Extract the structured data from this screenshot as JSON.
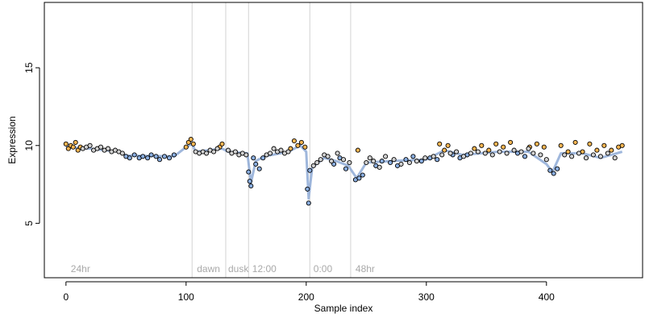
{
  "chart_data": {
    "type": "scatter",
    "title": "",
    "xlabel": "Sample index",
    "ylabel": "Expression",
    "xlim": [
      -18,
      480
    ],
    "ylim": [
      1.5,
      19.2
    ],
    "x_ticks": [
      0,
      100,
      200,
      300,
      400
    ],
    "y_ticks": [
      5,
      10,
      15
    ],
    "y_tick_labels": [
      "5",
      "10",
      "15"
    ],
    "x_tick_labels": [
      "0",
      "100",
      "200",
      "300",
      "400"
    ],
    "grid": false,
    "legend": "none",
    "colors": {
      "frame": "#000000",
      "divider": "#d3d3d3",
      "label_text": "#a9a9a9",
      "point_edge": "#000000",
      "fill_a": "#f7b652",
      "fill_b": "#8aaee0",
      "fill_neutral": "#d0d0d0",
      "trend_a": "#f0b068",
      "trend_b": "#8eaad6"
    },
    "segment_dividers": [
      105,
      133,
      152,
      203,
      237
    ],
    "segment_labels": [
      {
        "x": 2,
        "text": "24hr"
      },
      {
        "x": 107,
        "text": "dawn"
      },
      {
        "x": 133,
        "text": "dusk"
      },
      {
        "x": 153,
        "text": "12:00"
      },
      {
        "x": 204,
        "text": "0:00"
      },
      {
        "x": 239,
        "text": "48hr"
      }
    ],
    "series": [
      {
        "style": "orange-filled points",
        "points": [
          [
            0,
            10.1
          ],
          [
            2,
            9.8
          ],
          [
            4,
            10.0
          ],
          [
            6,
            9.9
          ],
          [
            8,
            10.2
          ],
          [
            10,
            9.7
          ],
          [
            12,
            9.9
          ],
          [
            100,
            9.9
          ],
          [
            102,
            10.2
          ],
          [
            104,
            10.4
          ],
          [
            106,
            10.1
          ],
          [
            128,
            9.9
          ],
          [
            130,
            10.1
          ],
          [
            187,
            9.8
          ],
          [
            190,
            10.3
          ],
          [
            193,
            10.0
          ],
          [
            196,
            10.2
          ],
          [
            199,
            9.9
          ],
          [
            243,
            9.7
          ],
          [
            311,
            10.1
          ],
          [
            315,
            9.7
          ],
          [
            318,
            10.0
          ],
          [
            340,
            9.8
          ],
          [
            346,
            10.0
          ],
          [
            352,
            9.7
          ],
          [
            358,
            10.1
          ],
          [
            364,
            9.9
          ],
          [
            370,
            10.2
          ],
          [
            386,
            9.9
          ],
          [
            392,
            10.1
          ],
          [
            398,
            9.9
          ],
          [
            412,
            10.0
          ],
          [
            418,
            9.6
          ],
          [
            424,
            10.2
          ],
          [
            430,
            9.6
          ],
          [
            436,
            10.1
          ],
          [
            442,
            9.7
          ],
          [
            448,
            10.0
          ],
          [
            454,
            9.7
          ],
          [
            460,
            9.9
          ],
          [
            463,
            10.0
          ]
        ]
      },
      {
        "style": "blue-filled points",
        "points": [
          [
            50,
            9.3
          ],
          [
            53,
            9.2
          ],
          [
            57,
            9.4
          ],
          [
            61,
            9.2
          ],
          [
            64,
            9.3
          ],
          [
            68,
            9.2
          ],
          [
            71,
            9.4
          ],
          [
            75,
            9.3
          ],
          [
            78,
            9.1
          ],
          [
            82,
            9.3
          ],
          [
            86,
            9.2
          ],
          [
            90,
            9.4
          ],
          [
            152,
            8.3
          ],
          [
            153,
            7.7
          ],
          [
            154,
            7.4
          ],
          [
            156,
            9.2
          ],
          [
            158,
            8.8
          ],
          [
            161,
            8.5
          ],
          [
            164,
            9.2
          ],
          [
            201,
            7.2
          ],
          [
            202,
            6.3
          ],
          [
            203,
            8.4
          ],
          [
            223,
            8.8
          ],
          [
            228,
            9.2
          ],
          [
            233,
            8.5
          ],
          [
            241,
            7.8
          ],
          [
            244,
            7.9
          ],
          [
            247,
            8.1
          ],
          [
            258,
            8.7
          ],
          [
            263,
            9.0
          ],
          [
            270,
            8.9
          ],
          [
            276,
            8.7
          ],
          [
            283,
            9.1
          ],
          [
            289,
            9.3
          ],
          [
            296,
            9.0
          ],
          [
            303,
            9.2
          ],
          [
            309,
            9.1
          ],
          [
            322,
            9.4
          ],
          [
            328,
            9.2
          ],
          [
            334,
            9.4
          ],
          [
            376,
            9.5
          ],
          [
            382,
            9.3
          ],
          [
            403,
            8.4
          ],
          [
            406,
            8.2
          ],
          [
            409,
            8.5
          ]
        ]
      },
      {
        "style": "neutral points",
        "points": [
          [
            14,
            9.8
          ],
          [
            17,
            9.9
          ],
          [
            20,
            10.0
          ],
          [
            23,
            9.7
          ],
          [
            26,
            9.8
          ],
          [
            29,
            9.9
          ],
          [
            32,
            9.7
          ],
          [
            35,
            9.8
          ],
          [
            38,
            9.6
          ],
          [
            41,
            9.7
          ],
          [
            44,
            9.6
          ],
          [
            47,
            9.5
          ],
          [
            108,
            9.6
          ],
          [
            111,
            9.5
          ],
          [
            114,
            9.6
          ],
          [
            117,
            9.5
          ],
          [
            120,
            9.7
          ],
          [
            123,
            9.6
          ],
          [
            126,
            9.8
          ],
          [
            135,
            9.7
          ],
          [
            138,
            9.5
          ],
          [
            141,
            9.6
          ],
          [
            144,
            9.4
          ],
          [
            147,
            9.5
          ],
          [
            150,
            9.4
          ],
          [
            167,
            9.4
          ],
          [
            170,
            9.5
          ],
          [
            173,
            9.8
          ],
          [
            176,
            9.6
          ],
          [
            179,
            9.7
          ],
          [
            182,
            9.5
          ],
          [
            185,
            9.6
          ],
          [
            206,
            8.7
          ],
          [
            209,
            8.9
          ],
          [
            212,
            9.1
          ],
          [
            215,
            9.4
          ],
          [
            218,
            9.3
          ],
          [
            221,
            9.0
          ],
          [
            226,
            9.5
          ],
          [
            231,
            9.1
          ],
          [
            236,
            8.9
          ],
          [
            250,
            8.9
          ],
          [
            253,
            9.2
          ],
          [
            256,
            9.0
          ],
          [
            261,
            8.6
          ],
          [
            266,
            9.3
          ],
          [
            273,
            9.1
          ],
          [
            279,
            8.8
          ],
          [
            286,
            8.9
          ],
          [
            292,
            9.0
          ],
          [
            299,
            9.2
          ],
          [
            306,
            9.3
          ],
          [
            313,
            9.4
          ],
          [
            320,
            9.5
          ],
          [
            325,
            9.6
          ],
          [
            331,
            9.3
          ],
          [
            337,
            9.5
          ],
          [
            343,
            9.6
          ],
          [
            349,
            9.5
          ],
          [
            355,
            9.4
          ],
          [
            361,
            9.6
          ],
          [
            367,
            9.5
          ],
          [
            373,
            9.7
          ],
          [
            379,
            9.6
          ],
          [
            385,
            9.8
          ],
          [
            389,
            9.5
          ],
          [
            395,
            9.4
          ],
          [
            400,
            9.1
          ],
          [
            415,
            9.4
          ],
          [
            421,
            9.3
          ],
          [
            427,
            9.5
          ],
          [
            433,
            9.2
          ],
          [
            439,
            9.4
          ],
          [
            445,
            9.3
          ],
          [
            451,
            9.5
          ],
          [
            457,
            9.2
          ]
        ]
      },
      {
        "style": "trend line",
        "points": [
          [
            0,
            9.9
          ],
          [
            20,
            9.8
          ],
          [
            45,
            9.6
          ],
          [
            50,
            9.35
          ],
          [
            90,
            9.3
          ],
          [
            100,
            9.9
          ],
          [
            105,
            10.1
          ],
          [
            108,
            9.6
          ],
          [
            130,
            9.8
          ],
          [
            135,
            9.6
          ],
          [
            151,
            9.5
          ],
          [
            154,
            7.6
          ],
          [
            158,
            9.0
          ],
          [
            165,
            9.3
          ],
          [
            185,
            9.6
          ],
          [
            195,
            10.0
          ],
          [
            200,
            9.6
          ],
          [
            202,
            6.6
          ],
          [
            205,
            8.6
          ],
          [
            215,
            9.2
          ],
          [
            225,
            9.0
          ],
          [
            235,
            8.7
          ],
          [
            242,
            7.9
          ],
          [
            250,
            8.9
          ],
          [
            270,
            9.0
          ],
          [
            300,
            9.1
          ],
          [
            315,
            9.7
          ],
          [
            330,
            9.4
          ],
          [
            360,
            9.6
          ],
          [
            385,
            9.6
          ],
          [
            400,
            8.8
          ],
          [
            405,
            8.3
          ],
          [
            412,
            9.5
          ],
          [
            430,
            9.5
          ],
          [
            445,
            9.2
          ],
          [
            463,
            9.6
          ]
        ]
      }
    ]
  }
}
